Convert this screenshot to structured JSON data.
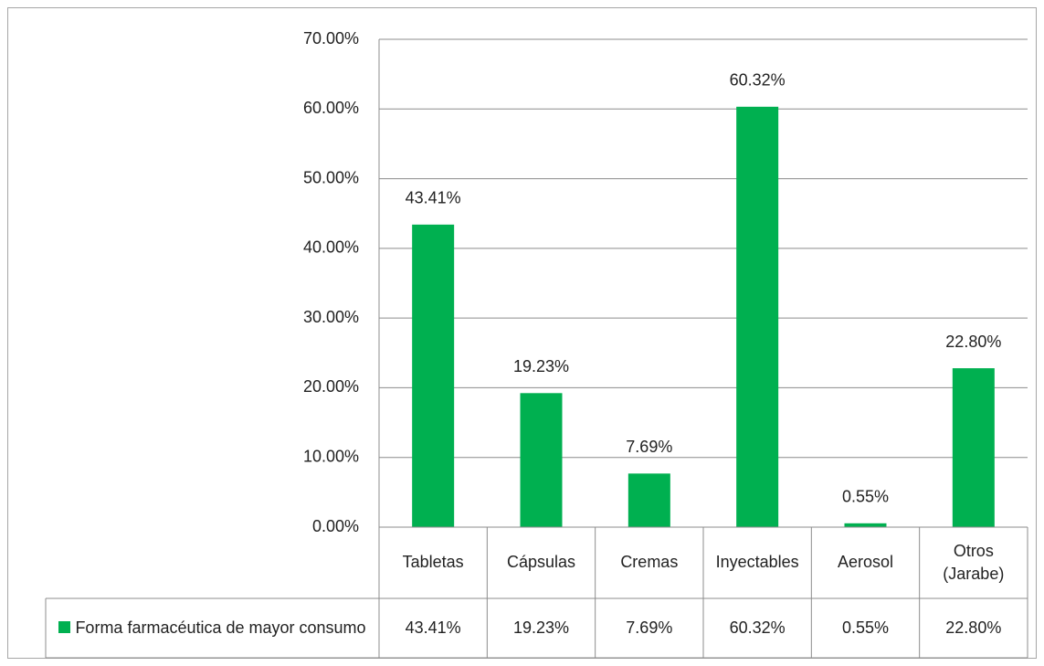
{
  "chart_data": {
    "type": "bar",
    "categories": [
      "Tabletas",
      "Cápsulas",
      "Cremas",
      "Inyectables",
      "Aerosol",
      "Otros (Jarabe)"
    ],
    "series": [
      {
        "name": "Forma farmacéutica de mayor consumo",
        "color": "#00b050",
        "values": [
          43.41,
          19.23,
          7.69,
          60.32,
          0.55,
          22.8
        ],
        "value_labels": [
          "43.41%",
          "19.23%",
          "7.69%",
          "60.32%",
          "0.55%",
          "22.80%"
        ]
      }
    ],
    "ylim": [
      0,
      70
    ],
    "yticks": [
      {
        "value": 0,
        "label": "0.00%"
      },
      {
        "value": 10,
        "label": "10.00%"
      },
      {
        "value": 20,
        "label": "20.00%"
      },
      {
        "value": 30,
        "label": "30.00%"
      },
      {
        "value": 40,
        "label": "40.00%"
      },
      {
        "value": 50,
        "label": "50.00%"
      },
      {
        "value": 60,
        "label": "60.00%"
      },
      {
        "value": 70,
        "label": "70.00%"
      }
    ],
    "grid": true,
    "data_table": true
  }
}
